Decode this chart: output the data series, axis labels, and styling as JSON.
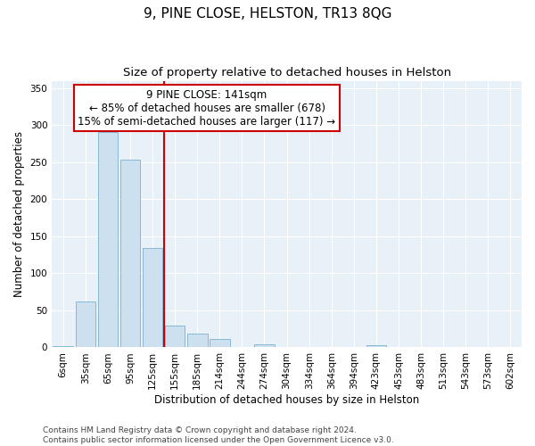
{
  "title": "9, PINE CLOSE, HELSTON, TR13 8QG",
  "subtitle": "Size of property relative to detached houses in Helston",
  "xlabel": "Distribution of detached houses by size in Helston",
  "ylabel": "Number of detached properties",
  "categories": [
    "6sqm",
    "35sqm",
    "65sqm",
    "95sqm",
    "125sqm",
    "155sqm",
    "185sqm",
    "214sqm",
    "244sqm",
    "274sqm",
    "304sqm",
    "334sqm",
    "364sqm",
    "394sqm",
    "423sqm",
    "453sqm",
    "483sqm",
    "513sqm",
    "543sqm",
    "573sqm",
    "602sqm"
  ],
  "values": [
    2,
    62,
    291,
    253,
    134,
    30,
    19,
    11,
    0,
    4,
    0,
    0,
    0,
    0,
    3,
    0,
    0,
    0,
    0,
    0,
    0
  ],
  "bar_color": "#cce0f0",
  "bar_edge_color": "#88b8d8",
  "vline_x": 4.5,
  "vline_color": "#cc0000",
  "annotation_text": "9 PINE CLOSE: 141sqm\n← 85% of detached houses are smaller (678)\n15% of semi-detached houses are larger (117) →",
  "annotation_box_color": "#ffffff",
  "annotation_box_edge": "#cc0000",
  "ylim": [
    0,
    360
  ],
  "yticks": [
    0,
    50,
    100,
    150,
    200,
    250,
    300,
    350
  ],
  "background_color": "#e8f0f8",
  "footer_line1": "Contains HM Land Registry data © Crown copyright and database right 2024.",
  "footer_line2": "Contains public sector information licensed under the Open Government Licence v3.0.",
  "title_fontsize": 11,
  "subtitle_fontsize": 9.5,
  "axis_label_fontsize": 8.5,
  "tick_fontsize": 7.5,
  "annotation_fontsize": 8.5,
  "footer_fontsize": 6.5
}
